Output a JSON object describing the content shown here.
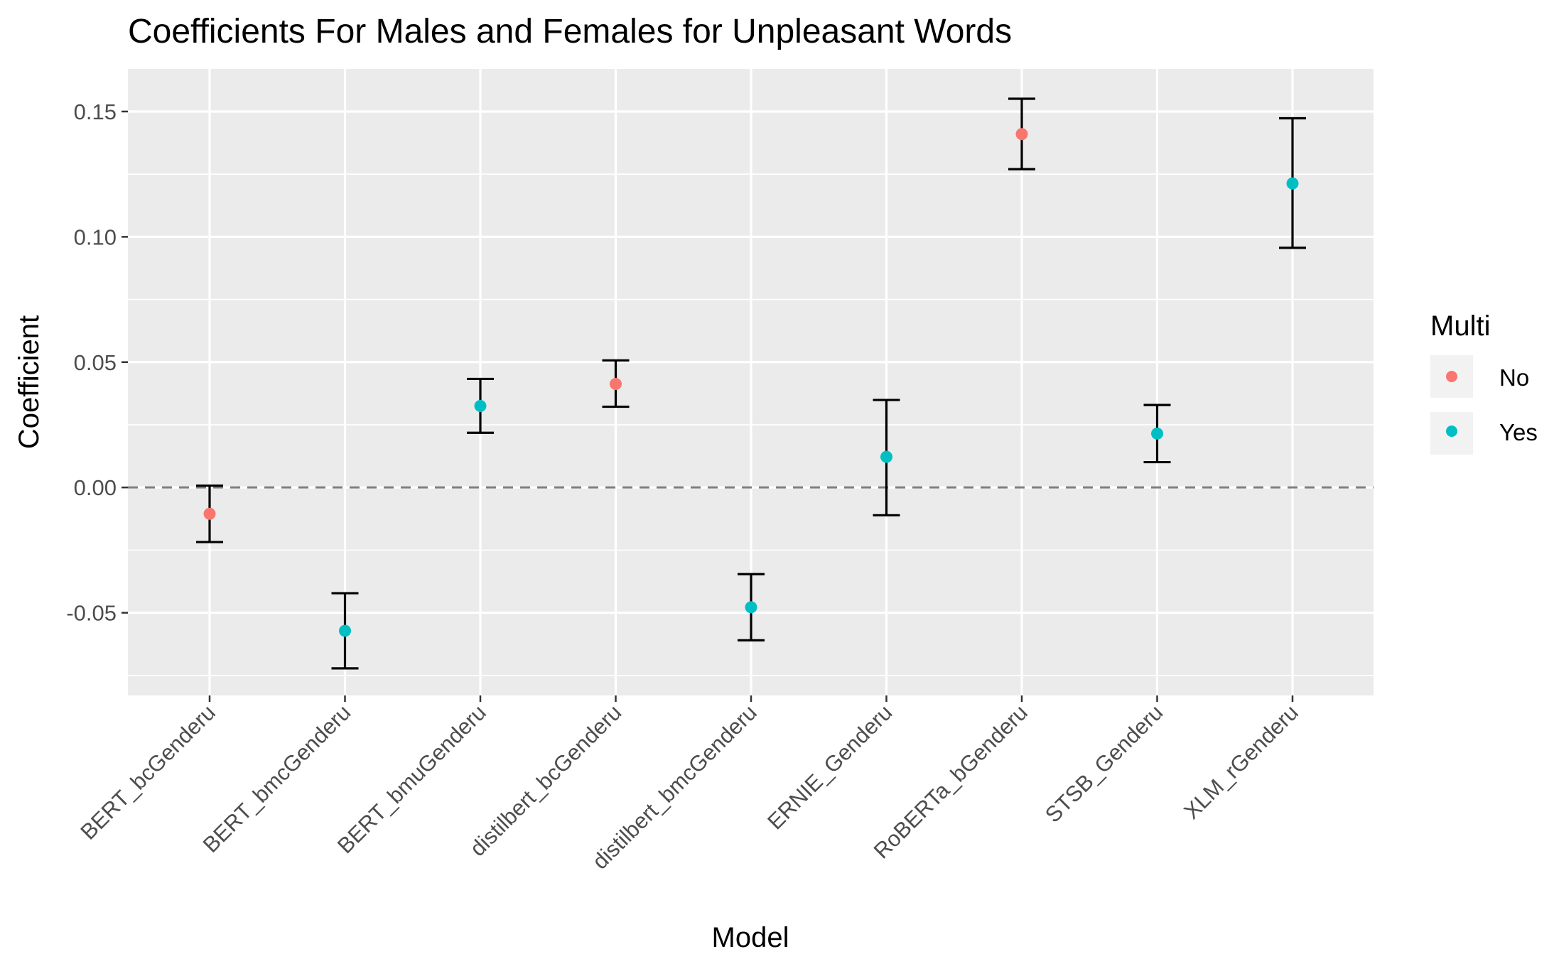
{
  "chart_data": {
    "type": "scatter",
    "title": "Coefficients For Males and Females for Unpleasant Words",
    "xlabel": "Model",
    "ylabel": "Coefficient",
    "ylim": [
      -0.083,
      0.167
    ],
    "yticks": [
      -0.05,
      0.0,
      0.05,
      0.1,
      0.15
    ],
    "ytick_labels": [
      "-0.05",
      "0.00",
      "0.05",
      "0.10",
      "0.15"
    ],
    "reference_line": 0,
    "grid": true,
    "legend": {
      "title": "Multi",
      "placement": "right",
      "entries": [
        {
          "label": "No",
          "color": "#F8766D"
        },
        {
          "label": "Yes",
          "color": "#00BFC4"
        }
      ]
    },
    "categories": [
      "BERT_bcGenderu",
      "BERT_bmcGenderu",
      "BERT_bmuGenderu",
      "distilbert_bcGenderu",
      "distilbert_bmcGenderu",
      "ERNIE_Genderu",
      "RoBERTa_bGenderu",
      "STSB_Genderu",
      "XLM_rGenderu"
    ],
    "points": [
      {
        "model": "BERT_bcGenderu",
        "value": -0.0105,
        "lower": -0.0218,
        "upper": 0.0007,
        "multi": "No"
      },
      {
        "model": "BERT_bmcGenderu",
        "value": -0.0572,
        "lower": -0.0722,
        "upper": -0.0422,
        "multi": "Yes"
      },
      {
        "model": "BERT_bmuGenderu",
        "value": 0.0325,
        "lower": 0.0218,
        "upper": 0.0433,
        "multi": "Yes"
      },
      {
        "model": "distilbert_bcGenderu",
        "value": 0.0413,
        "lower": 0.0322,
        "upper": 0.0507,
        "multi": "No"
      },
      {
        "model": "distilbert_bmcGenderu",
        "value": -0.0478,
        "lower": -0.061,
        "upper": -0.0346,
        "multi": "Yes"
      },
      {
        "model": "ERNIE_Genderu",
        "value": 0.0122,
        "lower": -0.0111,
        "upper": 0.0349,
        "multi": "Yes"
      },
      {
        "model": "RoBERTa_bGenderu",
        "value": 0.141,
        "lower": 0.127,
        "upper": 0.1551,
        "multi": "No"
      },
      {
        "model": "STSB_Genderu",
        "value": 0.0215,
        "lower": 0.0101,
        "upper": 0.0329,
        "multi": "Yes"
      },
      {
        "model": "XLM_rGenderu",
        "value": 0.1213,
        "lower": 0.0956,
        "upper": 0.1473,
        "multi": "Yes"
      }
    ]
  }
}
